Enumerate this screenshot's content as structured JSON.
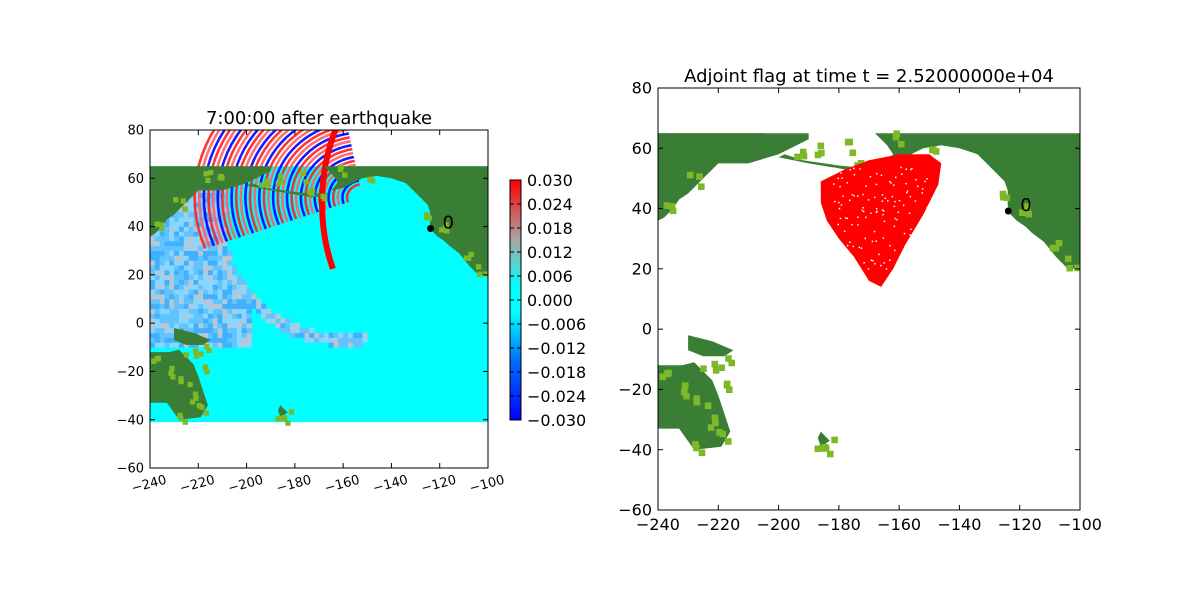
{
  "chart_data": [
    {
      "type": "heatmap",
      "title": "7:00:00 after earthquake",
      "xlabel": "",
      "ylabel": "",
      "xlim": [
        -240,
        -100
      ],
      "ylim": [
        -60,
        80
      ],
      "xticks": [
        -240,
        -220,
        -200,
        -180,
        -160,
        -140,
        -120,
        -100
      ],
      "yticks": [
        -60,
        -40,
        -20,
        0,
        20,
        40,
        60,
        80
      ],
      "xtick_labels": [
        "−240",
        "−220",
        "−200",
        "−180",
        "−160",
        "−140",
        "−120",
        "−100"
      ],
      "ytick_labels": [
        "−60",
        "−40",
        "−20",
        "0",
        "20",
        "40",
        "60",
        "80"
      ],
      "domain_extent": {
        "lon": [
          -240,
          -100
        ],
        "lat": [
          -41,
          65
        ]
      },
      "gauge": {
        "label": "0",
        "lon": -123.8,
        "lat": 39.2
      },
      "colorbar": {
        "range": [
          -0.03,
          0.03
        ],
        "ticks": [
          0.03,
          0.024,
          0.018,
          0.012,
          0.006,
          0.0,
          -0.006,
          -0.012,
          -0.018,
          -0.024,
          -0.03
        ],
        "tick_labels": [
          "0.030",
          "0.024",
          "0.018",
          "0.012",
          "0.006",
          "0.000",
          "−0.006",
          "−0.012",
          "−0.018",
          "−0.024",
          "−0.030"
        ],
        "colormap": [
          "#0000ff",
          "#00a0ff",
          "#00ffff",
          "#a0a0a0",
          "#ff0000"
        ]
      },
      "colors": {
        "ocean": "#00ffff",
        "land": "#3a7d34",
        "land_light": "#7cb82a"
      }
    },
    {
      "type": "heatmap",
      "title": "Adjoint flag at time t = 2.52000000e+04",
      "xlabel": "",
      "ylabel": "",
      "xlim": [
        -240,
        -100
      ],
      "ylim": [
        -60,
        80
      ],
      "xticks": [
        -240,
        -220,
        -200,
        -180,
        -160,
        -140,
        -120,
        -100
      ],
      "yticks": [
        -60,
        -40,
        -20,
        0,
        20,
        40,
        60,
        80
      ],
      "xtick_labels": [
        "−240",
        "−220",
        "−200",
        "−180",
        "−160",
        "−140",
        "−120",
        "−100"
      ],
      "ytick_labels": [
        "−60",
        "−40",
        "−20",
        "0",
        "20",
        "40",
        "60",
        "80"
      ],
      "domain_extent": {
        "lon": [
          -240,
          -100
        ],
        "lat": [
          -41,
          65
        ]
      },
      "gauge": {
        "label": "0",
        "lon": -123.8,
        "lat": 39.2
      },
      "colors": {
        "ocean": "#ffffff",
        "land": "#3a7d34",
        "land_light": "#7cb82a",
        "flag": "#ff0000"
      }
    }
  ]
}
